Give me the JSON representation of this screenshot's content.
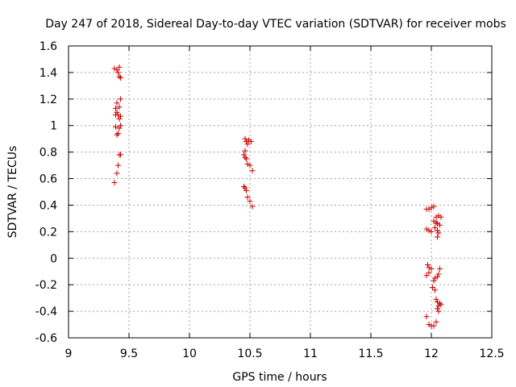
{
  "chart_data": {
    "type": "scatter",
    "title": "Day 247 of 2018, Sidereal Day-to-day VTEC variation (SDTVAR) for receiver mobs",
    "xlabel": "GPS time / hours",
    "ylabel": "SDTVAR / TECUs",
    "xlim": [
      9,
      12.5
    ],
    "ylim": [
      -0.6,
      1.6
    ],
    "xticks": [
      "9",
      "9.5",
      "10",
      "10.5",
      "11",
      "11.5",
      "12",
      "12.5"
    ],
    "yticks": [
      "-0.6",
      "-0.4",
      "-0.2",
      "0",
      "0.2",
      "0.4",
      "0.6",
      "0.8",
      "1",
      "1.2",
      "1.4",
      "1.6"
    ],
    "grid": true,
    "marker": "+",
    "marker_color": "#cc0000",
    "series": [
      {
        "name": "SDTVAR",
        "points": [
          [
            9.38,
            1.43
          ],
          [
            9.4,
            1.42
          ],
          [
            9.42,
            1.44
          ],
          [
            9.41,
            1.4
          ],
          [
            9.42,
            1.37
          ],
          [
            9.43,
            1.36
          ],
          [
            9.43,
            1.2
          ],
          [
            9.4,
            1.17
          ],
          [
            9.39,
            1.13
          ],
          [
            9.42,
            1.14
          ],
          [
            9.4,
            1.1
          ],
          [
            9.39,
            1.08
          ],
          [
            9.41,
            1.08
          ],
          [
            9.43,
            1.07
          ],
          [
            9.42,
            1.05
          ],
          [
            9.39,
            0.99
          ],
          [
            9.42,
            0.98
          ],
          [
            9.43,
            1.0
          ],
          [
            9.4,
            0.93
          ],
          [
            9.41,
            0.94
          ],
          [
            9.42,
            0.78
          ],
          [
            9.43,
            0.78
          ],
          [
            9.41,
            0.7
          ],
          [
            9.4,
            0.64
          ],
          [
            9.38,
            0.57
          ],
          [
            10.46,
            0.9
          ],
          [
            10.47,
            0.88
          ],
          [
            10.49,
            0.89
          ],
          [
            10.48,
            0.86
          ],
          [
            10.51,
            0.88
          ],
          [
            10.46,
            0.81
          ],
          [
            10.45,
            0.78
          ],
          [
            10.46,
            0.76
          ],
          [
            10.47,
            0.75
          ],
          [
            10.48,
            0.71
          ],
          [
            10.5,
            0.7
          ],
          [
            10.52,
            0.66
          ],
          [
            10.45,
            0.54
          ],
          [
            10.46,
            0.53
          ],
          [
            10.47,
            0.51
          ],
          [
            10.48,
            0.46
          ],
          [
            10.5,
            0.43
          ],
          [
            10.52,
            0.39
          ],
          [
            11.96,
            0.37
          ],
          [
            11.98,
            0.37
          ],
          [
            12.0,
            0.38
          ],
          [
            12.02,
            0.39
          ],
          [
            12.04,
            0.31
          ],
          [
            12.06,
            0.32
          ],
          [
            12.08,
            0.31
          ],
          [
            12.02,
            0.28
          ],
          [
            12.04,
            0.27
          ],
          [
            12.05,
            0.26
          ],
          [
            12.07,
            0.25
          ],
          [
            12.03,
            0.23
          ],
          [
            11.96,
            0.22
          ],
          [
            11.98,
            0.21
          ],
          [
            12.05,
            0.21
          ],
          [
            12.0,
            0.2
          ],
          [
            12.06,
            0.19
          ],
          [
            12.05,
            0.16
          ],
          [
            11.97,
            -0.05
          ],
          [
            11.98,
            -0.07
          ],
          [
            12.0,
            -0.08
          ],
          [
            11.98,
            -0.11
          ],
          [
            11.96,
            -0.13
          ],
          [
            12.07,
            -0.08
          ],
          [
            12.06,
            -0.12
          ],
          [
            12.05,
            -0.14
          ],
          [
            12.03,
            -0.15
          ],
          [
            12.02,
            -0.17
          ],
          [
            12.01,
            -0.22
          ],
          [
            12.03,
            -0.24
          ],
          [
            12.04,
            -0.31
          ],
          [
            12.05,
            -0.33
          ],
          [
            12.07,
            -0.34
          ],
          [
            12.06,
            -0.36
          ],
          [
            12.08,
            -0.35
          ],
          [
            12.05,
            -0.38
          ],
          [
            12.06,
            -0.4
          ],
          [
            11.96,
            -0.44
          ],
          [
            12.04,
            -0.48
          ],
          [
            11.98,
            -0.5
          ],
          [
            12.0,
            -0.51
          ],
          [
            12.02,
            -0.51
          ]
        ]
      }
    ]
  }
}
